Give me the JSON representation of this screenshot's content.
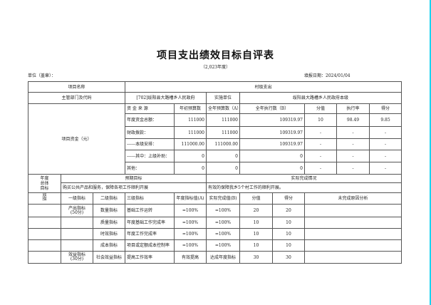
{
  "title": "项目支出绩效目标自评表",
  "subtitle": "（2,023年度）",
  "unit_label": "单位（盖章）：",
  "date_label": "填报日期：2024/01/04",
  "project": {
    "name_label": "项目名称",
    "name": "村级支出",
    "dept_label": "主管部门及代码",
    "dept": "[702]绥阳县大路槽乡人民政府",
    "impl_label": "实施单位",
    "impl": "绥阳县大路槽乡人民政府本级"
  },
  "funds": {
    "label": "项目资金（元）",
    "headers": [
      "资 金 来 源",
      "年初预算数",
      "全年预算数（A）",
      "全年执行数（B）",
      "分值",
      "执行率",
      "得分"
    ],
    "rows": [
      [
        "年度资金总额：",
        "111000",
        "111000",
        "109319.97",
        "10",
        "98.49",
        "9.85"
      ],
      [
        "财政拨款：",
        "111000",
        "111000",
        "109319.97",
        "-",
        "-",
        "-"
      ],
      [
        "------本级安排：",
        "111000.00",
        "111000.00",
        "109319.97",
        "-",
        "-",
        "-"
      ],
      [
        "------其中：上级补助：",
        "0",
        "0",
        "0",
        "-",
        "-",
        "-"
      ],
      [
        "其他：",
        "0",
        "0",
        "0",
        "-",
        "-",
        "-"
      ]
    ]
  },
  "goal": {
    "label": "年度\n总体\n目标",
    "expected_label": "预期目标",
    "actual_label": "实际完成情况",
    "expected": "购买公共产品和服务，保障各项工作顺利开展",
    "actual": "有效的保障我乡5个村工作的顺利开展。"
  },
  "indicators": {
    "label": "效\n指",
    "headers": [
      "一级指标",
      "二级指标",
      "三级指标",
      "年度指标值(A)",
      "实际完成值(B)",
      "分值",
      "得分",
      "未完成原因分析"
    ],
    "rows": [
      [
        "产出指标\n(50分)",
        "数量指标",
        "基础工作运转",
        "=100%",
        "=100%",
        "20",
        "20",
        ""
      ],
      [
        "",
        "质量指标",
        "年度基础工作完成率",
        "=100%",
        "=100%",
        "10",
        "10",
        ""
      ],
      [
        "",
        "时效指标",
        "年度工作完成率",
        "=100%",
        "=100%",
        "10",
        "10",
        ""
      ],
      [
        "",
        "成本指标",
        "项目或定额成本控制率",
        "=100%",
        "=100%",
        "10",
        "10",
        ""
      ],
      [
        "效益指标\n(30分)",
        "社会效益指标",
        "提高工作效率",
        "有效提高",
        "达成年度指标",
        "30",
        "30",
        ""
      ]
    ]
  }
}
